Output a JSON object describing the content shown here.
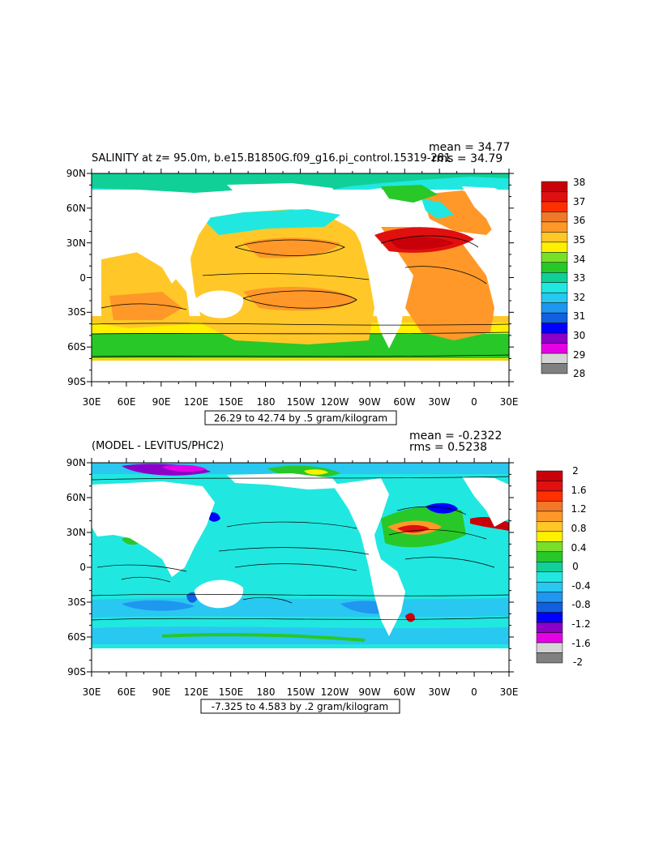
{
  "chart_data": [
    {
      "type": "heatmap",
      "title": "SALINITY at z=  95.0m, b.e15.B1850G.f09_g16.pi_control.15319-281",
      "stats": {
        "mean": "mean = 34.77",
        "rms": "rms = 34.79"
      },
      "range_label": "26.29 to 42.74 by .5 gram/kilogram",
      "x_ticks": [
        "30E",
        "60E",
        "90E",
        "120E",
        "150E",
        "180",
        "150W",
        "120W",
        "90W",
        "60W",
        "30W",
        "0",
        "30E"
      ],
      "y_ticks": [
        "90N",
        "60N",
        "30N",
        "0",
        "30S",
        "60S",
        "90S"
      ],
      "colorbar": {
        "labels": [
          "38",
          "37",
          "36",
          "35",
          "34",
          "33",
          "32",
          "31",
          "30",
          "29",
          "28"
        ],
        "colors": [
          "#c8000a",
          "#e01010",
          "#ff3000",
          "#f07828",
          "#ff9828",
          "#ffc828",
          "#fff000",
          "#78e028",
          "#28c828",
          "#10d098",
          "#20e8e0",
          "#28c8f0",
          "#1f96f0",
          "#1060e0",
          "#0000ff",
          "#8c00c8",
          "#e600e6",
          "#d4d4d4",
          "#808080"
        ]
      }
    },
    {
      "type": "heatmap",
      "title": "(MODEL - LEVITUS/PHC2)",
      "stats": {
        "mean": "mean = -0.2322",
        "rms": "rms = 0.5238"
      },
      "range_label": "-7.325 to 4.583 by .2 gram/kilogram",
      "x_ticks": [
        "30E",
        "60E",
        "90E",
        "120E",
        "150E",
        "180",
        "150W",
        "120W",
        "90W",
        "60W",
        "30W",
        "0",
        "30E"
      ],
      "y_ticks": [
        "90N",
        "60N",
        "30N",
        "0",
        "30S",
        "60S",
        "90S"
      ],
      "colorbar": {
        "labels": [
          "2",
          "1.6",
          "1.2",
          "0.8",
          "0.4",
          "0",
          "-0.4",
          "-0.8",
          "-1.2",
          "-1.6",
          "-2"
        ],
        "colors": [
          "#c8000a",
          "#e01010",
          "#ff3000",
          "#f07828",
          "#ff9828",
          "#ffc828",
          "#fff000",
          "#78e028",
          "#28c828",
          "#10d098",
          "#20e8e0",
          "#28c8f0",
          "#1f96f0",
          "#1060e0",
          "#0000ff",
          "#8c00c8",
          "#e600e6",
          "#d4d4d4",
          "#808080"
        ]
      }
    }
  ]
}
